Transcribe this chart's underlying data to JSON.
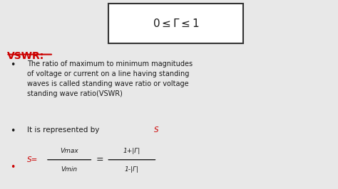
{
  "bg_color": "#e8e8e8",
  "box_text": "0 ≤ Γ ≤ 1",
  "title": "VSWR:",
  "bullet1": "The ratio of maximum to minimum magnitudes\nof voltage or current on a line having standing\nwaves is called standing wave ratio or voltage\nstanding wave ratio(VSWR)",
  "bullet2": "It is represented by ",
  "bullet2_red": "S",
  "bullet3_s": "S=",
  "bullet3_num": "Vmax",
  "bullet3_den": "Vmin",
  "bullet3_num2": "1+|Γ|",
  "bullet3_den2": "1-|Γ|",
  "red_color": "#cc0000",
  "black_color": "#1a1a1a",
  "white": "#ffffff",
  "box_edge": "#333333"
}
